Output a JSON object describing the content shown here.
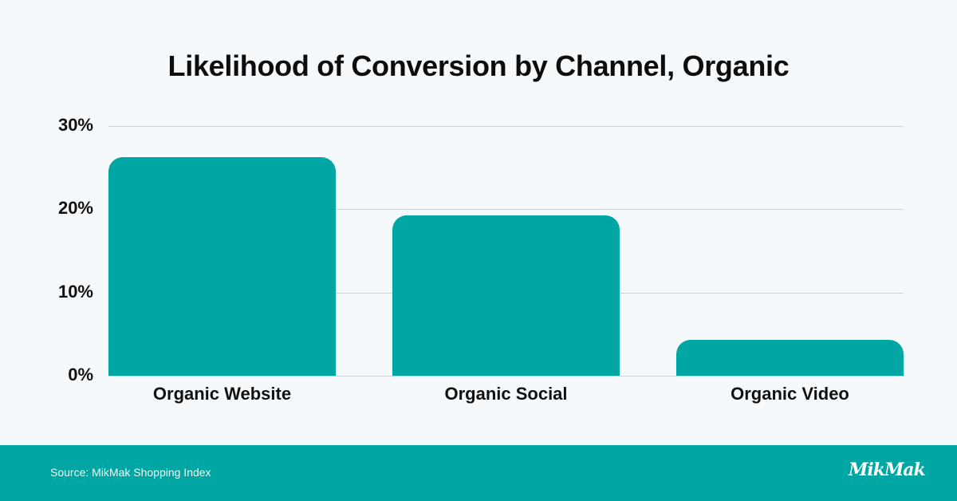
{
  "header": {
    "title": "Likelihood of Conversion by Channel, Organic"
  },
  "footer": {
    "source": "Source: MikMak Shopping Index",
    "logo": "MikMak"
  },
  "colors": {
    "bar": "#00a6a3",
    "background": "#f5f9fc",
    "footer": "#00a6a3",
    "gridline": "#cdd2d6"
  },
  "chart_data": {
    "type": "bar",
    "title": "Likelihood of Conversion by Channel, Organic",
    "categories": [
      "Organic Website",
      "Organic Social",
      "Organic Video"
    ],
    "values": [
      26.3,
      19.3,
      4.3
    ],
    "xlabel": "",
    "ylabel": "",
    "ylim": [
      0,
      30
    ],
    "yticks": [
      "0%",
      "10%",
      "20%",
      "30%"
    ],
    "grid": true,
    "legend": null,
    "source": "Source: MikMak Shopping Index"
  }
}
